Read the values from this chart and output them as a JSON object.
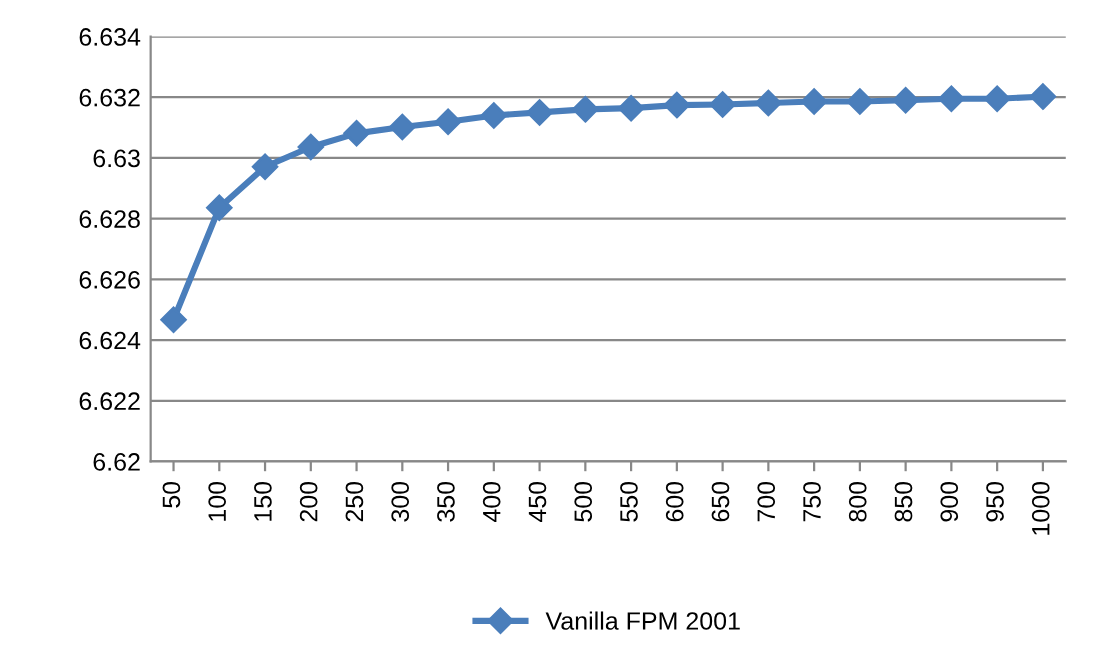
{
  "chart_data": {
    "type": "line",
    "categories": [
      "50",
      "100",
      "150",
      "200",
      "250",
      "300",
      "350",
      "400",
      "450",
      "500",
      "550",
      "600",
      "650",
      "700",
      "750",
      "800",
      "850",
      "900",
      "950",
      "1000"
    ],
    "series": [
      {
        "name": "Vanilla FPM 2001",
        "color": "#4a7ebb",
        "values": [
          6.62467,
          6.62836,
          6.62971,
          6.63036,
          6.63081,
          6.63102,
          6.63119,
          6.6314,
          6.6315,
          6.6316,
          6.63164,
          6.63174,
          6.63176,
          6.63181,
          6.63186,
          6.63186,
          6.6319,
          6.63195,
          6.63195,
          6.63202
        ]
      }
    ],
    "ylim": [
      6.62,
      6.634
    ],
    "yticks": [
      6.62,
      6.622,
      6.624,
      6.626,
      6.628,
      6.63,
      6.632,
      6.634
    ],
    "grid": "y",
    "legend": "bottom",
    "marker": "diamond",
    "line_style": "solid"
  }
}
